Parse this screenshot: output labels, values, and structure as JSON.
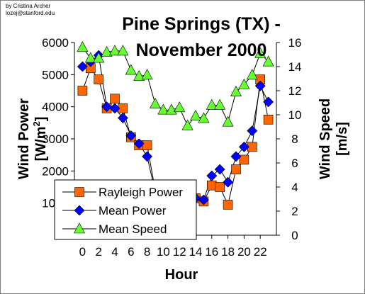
{
  "credit": {
    "line1": "by Cristina Archer",
    "line2": "lozej@stanford.edu"
  },
  "chart_data": {
    "type": "line",
    "title_line1": "Pine Springs (TX) -",
    "title_line2": "November 2000",
    "xlabel": "Hour",
    "ylabel_left": "Wind Power [W/m2]",
    "ylabel_left_text": "Wind Power",
    "ylabel_left_unit": "[W/m",
    "ylabel_left_sup": "2",
    "ylabel_left_close": "]",
    "ylabel_right_line1": "Wind Speed",
    "ylabel_right_line2": "[m/s]",
    "x": [
      0,
      1,
      2,
      3,
      4,
      5,
      6,
      7,
      8,
      9,
      10,
      11,
      12,
      13,
      14,
      15,
      16,
      17,
      18,
      19,
      20,
      21,
      22,
      23
    ],
    "x_tick_labels": [
      "0",
      "2",
      "4",
      "6",
      "8",
      "10",
      "12",
      "14",
      "16",
      "18",
      "20",
      "22"
    ],
    "x_tick_values": [
      0,
      2,
      4,
      6,
      8,
      10,
      12,
      14,
      16,
      18,
      20,
      22
    ],
    "xlim": [
      -1,
      24
    ],
    "ylim_left": [
      0,
      6000
    ],
    "y_left_tick_labels": [
      "0",
      "1000",
      "2000",
      "3000",
      "4000",
      "5000",
      "6000"
    ],
    "ylim_right": [
      0,
      16
    ],
    "y_right_tick_labels": [
      "0",
      "2",
      "4",
      "6",
      "8",
      "10",
      "12",
      "14",
      "16"
    ],
    "series": [
      {
        "name": "Rayleigh Power",
        "axis": "left",
        "marker": "square",
        "color": "#FF6600",
        "values": [
          4500,
          5200,
          4850,
          3950,
          4250,
          3950,
          3050,
          2800,
          2800,
          1400,
          1200,
          1150,
          1150,
          1150,
          1150,
          1050,
          1550,
          1500,
          950,
          2050,
          2350,
          2750,
          4850,
          3600
        ]
      },
      {
        "name": "Mean Power",
        "axis": "left",
        "marker": "diamond",
        "color": "#0000FF",
        "values": [
          5250,
          5400,
          5600,
          4000,
          3950,
          3650,
          3100,
          2850,
          2450,
          1350,
          1150,
          1100,
          1100,
          1100,
          1150,
          1100,
          1850,
          2050,
          1650,
          2450,
          2750,
          3250,
          4650,
          4150
        ]
      },
      {
        "name": "Mean Speed",
        "axis": "right",
        "marker": "triangle",
        "color": "#66FF33",
        "values": [
          15.6,
          14.7,
          14.7,
          15.2,
          15.3,
          15.3,
          13.7,
          13.2,
          13.3,
          10.9,
          10.4,
          10.4,
          10.6,
          9.1,
          9.9,
          9.7,
          10.8,
          10.8,
          9.4,
          11.9,
          12.5,
          13.3,
          15.1,
          14.4
        ]
      }
    ],
    "legend_position": "lower-left",
    "grid": false
  }
}
